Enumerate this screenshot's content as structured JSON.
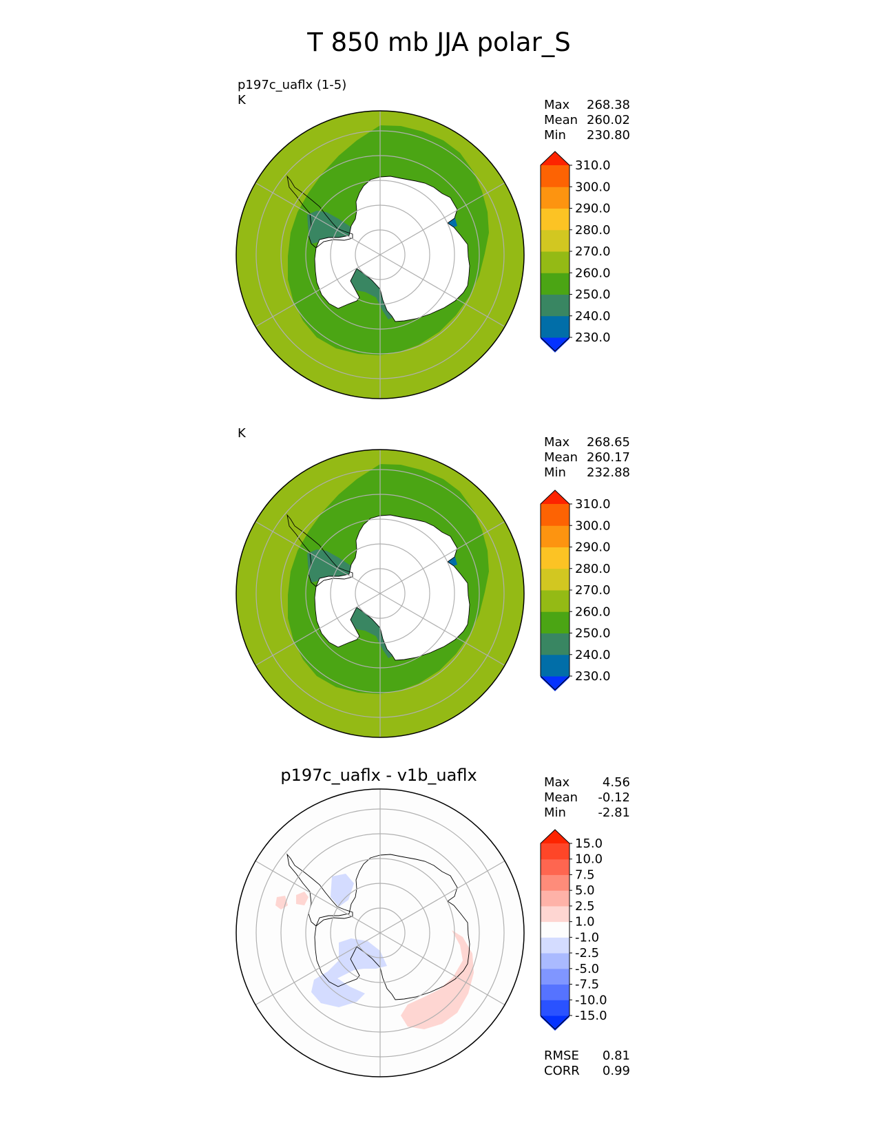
{
  "title": "T 850 mb JJA polar_S",
  "panels": [
    {
      "id": "test",
      "label_line1": "p197c_uaflx (1-5)",
      "label_line2": "K",
      "stats": [
        {
          "label": "Max",
          "value": "268.38"
        },
        {
          "label": "Mean",
          "value": "260.02"
        },
        {
          "label": "Min",
          "value": "230.80"
        }
      ]
    },
    {
      "id": "reference",
      "label_line1": "",
      "label_line2": "K",
      "stats": [
        {
          "label": "Max",
          "value": "268.65"
        },
        {
          "label": "Mean",
          "value": "260.17"
        },
        {
          "label": "Min",
          "value": "232.88"
        }
      ]
    },
    {
      "id": "difference",
      "title": "p197c_uaflx - v1b_uaflx",
      "stats": [
        {
          "label": "Max",
          "value": "4.56"
        },
        {
          "label": "Mean",
          "value": "-0.12"
        },
        {
          "label": "Min",
          "value": "-2.81"
        }
      ],
      "metrics": [
        {
          "label": "RMSE",
          "value": "0.81"
        },
        {
          "label": "CORR",
          "value": "0.99"
        }
      ]
    }
  ],
  "chart_data": [
    {
      "type": "heatmap",
      "projection": "south polar stereographic",
      "colorbar_ticks": [
        "230.0",
        "240.0",
        "250.0",
        "260.0",
        "270.0",
        "280.0",
        "290.0",
        "300.0",
        "310.0"
      ],
      "colorbar_colors": [
        "#0432ff",
        "#016ea8",
        "#398662",
        "#4ba514",
        "#94ba15",
        "#d2c721",
        "#fcc324",
        "#fd9410",
        "#fd6303",
        "#fd2400"
      ],
      "fields": {
        "continent": "#ffffff",
        "coastal_ring": "#4ba514",
        "outer_ocean": "#94ba15",
        "shelf_seas": "#398662",
        "deep_cold": "#016ea8"
      }
    },
    {
      "type": "heatmap",
      "projection": "south polar stereographic",
      "colorbar_ticks": [
        "230.0",
        "240.0",
        "250.0",
        "260.0",
        "270.0",
        "280.0",
        "290.0",
        "300.0",
        "310.0"
      ],
      "colorbar_colors": [
        "#0432ff",
        "#016ea8",
        "#398662",
        "#4ba514",
        "#94ba15",
        "#d2c721",
        "#fcc324",
        "#fd9410",
        "#fd6303",
        "#fd2400"
      ],
      "fields": {
        "continent": "#ffffff",
        "coastal_ring": "#4ba514",
        "outer_ocean": "#94ba15",
        "shelf_seas": "#398662",
        "deep_cold": "#016ea8"
      }
    },
    {
      "type": "heatmap",
      "projection": "south polar stereographic",
      "colorbar_ticks": [
        "-15.0",
        "-10.0",
        "-7.5",
        "-5.0",
        "-2.5",
        "-1.0",
        "1.0",
        "2.5",
        "5.0",
        "7.5",
        "10.0",
        "15.0"
      ],
      "colorbar_colors": [
        "#0432ff",
        "#2a52ff",
        "#5673ff",
        "#8096ff",
        "#aabaff",
        "#d4dcff",
        "#fdfdfd",
        "#fed6d2",
        "#feb2a8",
        "#fe8c7a",
        "#fe6650",
        "#fe4628",
        "#fd2400"
      ],
      "fields": {
        "positive_anomaly": "#fed6d2",
        "negative_anomaly": "#d4dcff",
        "background": "#fdfdfd"
      }
    }
  ]
}
